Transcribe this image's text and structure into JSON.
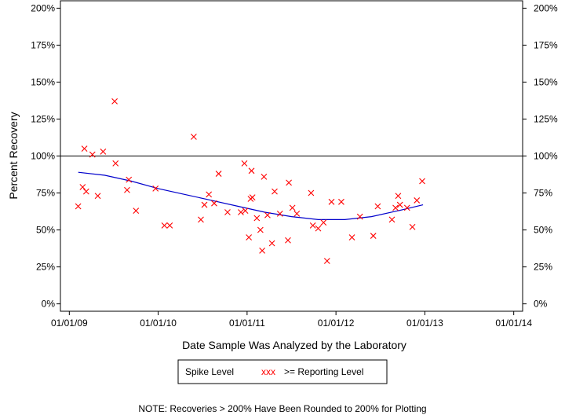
{
  "chart_data": {
    "type": "scatter",
    "title": "",
    "xlabel": "Date Sample Was Analyzed by the Laboratory",
    "ylabel": "Percent Recovery",
    "x_tick_labels": [
      "01/01/09",
      "01/01/10",
      "01/01/11",
      "01/01/12",
      "01/01/13",
      "01/01/14"
    ],
    "x_tick_years": [
      2009,
      2010,
      2011,
      2012,
      2013,
      2014
    ],
    "xlim": [
      2008.9,
      2014.1
    ],
    "y_tick_values": [
      0,
      25,
      50,
      75,
      100,
      125,
      150,
      175,
      200
    ],
    "y_tick_labels": [
      "0%",
      "25%",
      "50%",
      "75%",
      "100%",
      "125%",
      "150%",
      "175%",
      "200%"
    ],
    "ylim": [
      -5,
      205
    ],
    "reference_line": 100,
    "legend": {
      "title": "Spike Level",
      "marker_label": "xxx",
      "label": ">= Reporting Level",
      "placement": "bottom-center"
    },
    "note": "NOTE: Recoveries > 200% Have Been Rounded to 200% for Plotting",
    "colors": {
      "points": "#ff0000",
      "trend": "#0000cc",
      "axes": "#000000"
    },
    "series": [
      {
        "marker": "x",
        "points": [
          {
            "x": 2009.1,
            "y": 66
          },
          {
            "x": 2009.15,
            "y": 79
          },
          {
            "x": 2009.17,
            "y": 105
          },
          {
            "x": 2009.19,
            "y": 76
          },
          {
            "x": 2009.26,
            "y": 101
          },
          {
            "x": 2009.32,
            "y": 73
          },
          {
            "x": 2009.38,
            "y": 103
          },
          {
            "x": 2009.51,
            "y": 137
          },
          {
            "x": 2009.52,
            "y": 95
          },
          {
            "x": 2009.65,
            "y": 77
          },
          {
            "x": 2009.67,
            "y": 84
          },
          {
            "x": 2009.75,
            "y": 63
          },
          {
            "x": 2009.97,
            "y": 78
          },
          {
            "x": 2010.07,
            "y": 53
          },
          {
            "x": 2010.13,
            "y": 53
          },
          {
            "x": 2010.4,
            "y": 113
          },
          {
            "x": 2010.48,
            "y": 57
          },
          {
            "x": 2010.52,
            "y": 67
          },
          {
            "x": 2010.57,
            "y": 74
          },
          {
            "x": 2010.63,
            "y": 68
          },
          {
            "x": 2010.68,
            "y": 88
          },
          {
            "x": 2010.78,
            "y": 62
          },
          {
            "x": 2010.93,
            "y": 62
          },
          {
            "x": 2010.97,
            "y": 95
          },
          {
            "x": 2010.98,
            "y": 63
          },
          {
            "x": 2011.02,
            "y": 45
          },
          {
            "x": 2011.04,
            "y": 71
          },
          {
            "x": 2011.05,
            "y": 90
          },
          {
            "x": 2011.06,
            "y": 72
          },
          {
            "x": 2011.11,
            "y": 58
          },
          {
            "x": 2011.15,
            "y": 50
          },
          {
            "x": 2011.17,
            "y": 36
          },
          {
            "x": 2011.19,
            "y": 86
          },
          {
            "x": 2011.23,
            "y": 60
          },
          {
            "x": 2011.28,
            "y": 41
          },
          {
            "x": 2011.31,
            "y": 76
          },
          {
            "x": 2011.37,
            "y": 61
          },
          {
            "x": 2011.46,
            "y": 43
          },
          {
            "x": 2011.47,
            "y": 82
          },
          {
            "x": 2011.51,
            "y": 65
          },
          {
            "x": 2011.56,
            "y": 61
          },
          {
            "x": 2011.72,
            "y": 75
          },
          {
            "x": 2011.74,
            "y": 53
          },
          {
            "x": 2011.8,
            "y": 51
          },
          {
            "x": 2011.86,
            "y": 55
          },
          {
            "x": 2011.9,
            "y": 29
          },
          {
            "x": 2011.95,
            "y": 69
          },
          {
            "x": 2012.06,
            "y": 69
          },
          {
            "x": 2012.18,
            "y": 45
          },
          {
            "x": 2012.27,
            "y": 59
          },
          {
            "x": 2012.42,
            "y": 46
          },
          {
            "x": 2012.47,
            "y": 66
          },
          {
            "x": 2012.63,
            "y": 57
          },
          {
            "x": 2012.67,
            "y": 65
          },
          {
            "x": 2012.7,
            "y": 73
          },
          {
            "x": 2012.72,
            "y": 67
          },
          {
            "x": 2012.8,
            "y": 65
          },
          {
            "x": 2012.86,
            "y": 52
          },
          {
            "x": 2012.91,
            "y": 70
          },
          {
            "x": 2012.97,
            "y": 83
          }
        ]
      }
    ],
    "trend": [
      {
        "x": 2009.1,
        "y": 89
      },
      {
        "x": 2009.4,
        "y": 87
      },
      {
        "x": 2009.7,
        "y": 83
      },
      {
        "x": 2010.0,
        "y": 78
      },
      {
        "x": 2010.3,
        "y": 74
      },
      {
        "x": 2010.6,
        "y": 70
      },
      {
        "x": 2010.9,
        "y": 66
      },
      {
        "x": 2011.2,
        "y": 62
      },
      {
        "x": 2011.5,
        "y": 59
      },
      {
        "x": 2011.8,
        "y": 57
      },
      {
        "x": 2012.1,
        "y": 57
      },
      {
        "x": 2012.4,
        "y": 59
      },
      {
        "x": 2012.7,
        "y": 63
      },
      {
        "x": 2012.98,
        "y": 67
      }
    ]
  }
}
